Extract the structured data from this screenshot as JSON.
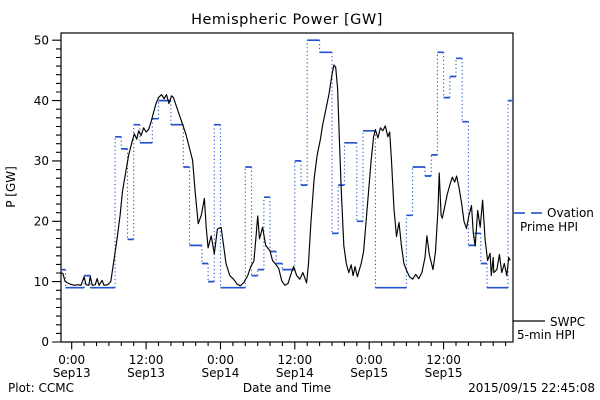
{
  "title": "Hemispheric Power [GW]",
  "footer": {
    "plot_credit": "Plot: CCMC",
    "generated_timestamp": "2015/09/15 22:45:08"
  },
  "legend": {
    "ovation_line1": "Ovation",
    "ovation_line2": "Prime HPI",
    "swpc_line1": "SWPC",
    "swpc_line2": "5-min HPI"
  },
  "colors": {
    "ovation_blue": "#2353cc",
    "swpc_black": "#000000",
    "axis": "#000000",
    "background": "#ffffff"
  },
  "chart_data": {
    "type": "line",
    "title": "Hemispheric Power [GW]",
    "xlabel": "Date and Time",
    "ylabel": "P [GW]",
    "ylim": [
      0,
      50
    ],
    "grid": false,
    "legend_position": "right-outside",
    "x_axis": {
      "unit_hours_from": "Sep13 0:00",
      "domain": [
        -1.73,
        71.2
      ],
      "major_tick_hours": [
        0,
        12,
        24,
        36,
        48,
        60
      ],
      "major_tick_labels": [
        [
          "0:00",
          "Sep13"
        ],
        [
          "12:00",
          "Sep13"
        ],
        [
          "0:00",
          "Sep14"
        ],
        [
          "12:00",
          "Sep14"
        ],
        [
          "0:00",
          "Sep15"
        ],
        [
          "12:00",
          "Sep15"
        ]
      ],
      "minor_tick_step_hours": 2
    },
    "y_axis": {
      "ticks": [
        0,
        10,
        20,
        30,
        40,
        50
      ],
      "minor_divisions_per_major": 7
    },
    "series": [
      {
        "name": "Ovation Prime HPI",
        "style": "step-dotted-verticals",
        "color": "#2353cc",
        "steps": [
          [
            -2,
            12
          ],
          [
            -1,
            9
          ],
          [
            0,
            9
          ],
          [
            1,
            9
          ],
          [
            2,
            11
          ],
          [
            3,
            9
          ],
          [
            4,
            9
          ],
          [
            5,
            9
          ],
          [
            6,
            9
          ],
          [
            7,
            34
          ],
          [
            8,
            32
          ],
          [
            9,
            17
          ],
          [
            10,
            36
          ],
          [
            11,
            33
          ],
          [
            12,
            33
          ],
          [
            13,
            37
          ],
          [
            14,
            40
          ],
          [
            15,
            40
          ],
          [
            16,
            36
          ],
          [
            17,
            36
          ],
          [
            18,
            29
          ],
          [
            19,
            16
          ],
          [
            20,
            16
          ],
          [
            21,
            13
          ],
          [
            22,
            10
          ],
          [
            23,
            36
          ],
          [
            24,
            9
          ],
          [
            25,
            9
          ],
          [
            26,
            9
          ],
          [
            27,
            9
          ],
          [
            28,
            29
          ],
          [
            29,
            11
          ],
          [
            30,
            12
          ],
          [
            31,
            24
          ],
          [
            32,
            15
          ],
          [
            33,
            13
          ],
          [
            34,
            12
          ],
          [
            35,
            12
          ],
          [
            36,
            30
          ],
          [
            37,
            26
          ],
          [
            38,
            50
          ],
          [
            39,
            50
          ],
          [
            40,
            48
          ],
          [
            41,
            48
          ],
          [
            42,
            18
          ],
          [
            43,
            26
          ],
          [
            44,
            33
          ],
          [
            45,
            33
          ],
          [
            46,
            20
          ],
          [
            47,
            35
          ],
          [
            48,
            35
          ],
          [
            49,
            9
          ],
          [
            50,
            9
          ],
          [
            51,
            9
          ],
          [
            52,
            9
          ],
          [
            53,
            9
          ],
          [
            54,
            21
          ],
          [
            55,
            29
          ],
          [
            56,
            29
          ],
          [
            57,
            27.5
          ],
          [
            58,
            31
          ],
          [
            59,
            48
          ],
          [
            60,
            40.5
          ],
          [
            61,
            44
          ],
          [
            62,
            47
          ],
          [
            63,
            36.5
          ],
          [
            64,
            16
          ],
          [
            65,
            18
          ],
          [
            66,
            13
          ],
          [
            67,
            9
          ],
          [
            68,
            9
          ],
          [
            69,
            9
          ],
          [
            70,
            9
          ],
          [
            70.4,
            40
          ]
        ]
      },
      {
        "name": "SWPC 5-min HPI",
        "style": "solid",
        "color": "#000000",
        "points": [
          [
            -1.73,
            11.5
          ],
          [
            -1.4,
            11.3
          ],
          [
            -1.1,
            10.1
          ],
          [
            -0.7,
            9.8
          ],
          [
            0,
            9.5
          ],
          [
            0.5,
            9.4
          ],
          [
            1,
            9.5
          ],
          [
            1.5,
            9.4
          ],
          [
            2,
            10.8
          ],
          [
            2.3,
            9.5
          ],
          [
            2.75,
            9.4
          ],
          [
            3,
            10.9
          ],
          [
            3.3,
            9.4
          ],
          [
            3.8,
            9.5
          ],
          [
            4.1,
            10.5
          ],
          [
            4.4,
            9.4
          ],
          [
            4.9,
            10.2
          ],
          [
            5.2,
            9.4
          ],
          [
            5.8,
            9.5
          ],
          [
            6.3,
            10
          ],
          [
            6.8,
            13.5
          ],
          [
            7.3,
            17
          ],
          [
            7.8,
            21
          ],
          [
            8.2,
            25
          ],
          [
            8.7,
            28
          ],
          [
            9.2,
            31
          ],
          [
            9.7,
            33
          ],
          [
            10.1,
            34.5
          ],
          [
            10.5,
            33.6
          ],
          [
            10.8,
            35
          ],
          [
            11.2,
            34.2
          ],
          [
            11.6,
            35.5
          ],
          [
            12,
            34.8
          ],
          [
            12.4,
            35.2
          ],
          [
            12.8,
            36.5
          ],
          [
            13.2,
            38
          ],
          [
            13.6,
            39.5
          ],
          [
            14,
            40.5
          ],
          [
            14.5,
            41
          ],
          [
            14.9,
            40.3
          ],
          [
            15.3,
            41
          ],
          [
            15.7,
            39.5
          ],
          [
            16.1,
            40.8
          ],
          [
            16.4,
            40.5
          ],
          [
            16.9,
            39
          ],
          [
            17.4,
            37.5
          ],
          [
            17.9,
            36
          ],
          [
            18.4,
            34.5
          ],
          [
            18.9,
            32.5
          ],
          [
            19.5,
            30.1
          ],
          [
            19.9,
            25
          ],
          [
            20.4,
            19.6
          ],
          [
            20.9,
            21
          ],
          [
            21.4,
            23.8
          ],
          [
            21.7,
            19
          ],
          [
            22,
            15.6
          ],
          [
            22.5,
            17.6
          ],
          [
            23,
            14.6
          ],
          [
            23.5,
            18.7
          ],
          [
            24.1,
            19
          ],
          [
            24.5,
            16
          ],
          [
            24.9,
            13
          ],
          [
            25.5,
            11
          ],
          [
            26.1,
            10.4
          ],
          [
            26.7,
            9.6
          ],
          [
            27.2,
            9.3
          ],
          [
            27.8,
            9.9
          ],
          [
            28.4,
            11
          ],
          [
            28.9,
            12.5
          ],
          [
            29.4,
            13.4
          ],
          [
            29.7,
            17
          ],
          [
            30,
            20.9
          ],
          [
            30.3,
            17.1
          ],
          [
            30.8,
            19
          ],
          [
            31.3,
            16
          ],
          [
            32,
            15.1
          ],
          [
            32.4,
            13.5
          ],
          [
            32.9,
            12.9
          ],
          [
            33.4,
            12.2
          ],
          [
            33.9,
            10.1
          ],
          [
            34.4,
            9.4
          ],
          [
            34.9,
            9.7
          ],
          [
            35.3,
            11
          ],
          [
            35.8,
            12.5
          ],
          [
            36.3,
            11
          ],
          [
            36.8,
            10.4
          ],
          [
            37.3,
            11.5
          ],
          [
            37.9,
            9.8
          ],
          [
            38.2,
            13
          ],
          [
            38.6,
            20
          ],
          [
            39.1,
            27
          ],
          [
            39.6,
            31
          ],
          [
            40.1,
            33.5
          ],
          [
            40.5,
            36
          ],
          [
            41,
            38.5
          ],
          [
            41.5,
            41
          ],
          [
            42,
            44.3
          ],
          [
            42.3,
            45.9
          ],
          [
            42.6,
            45.5
          ],
          [
            42.9,
            42
          ],
          [
            43.2,
            33
          ],
          [
            43.5,
            25
          ],
          [
            43.9,
            16
          ],
          [
            44.3,
            13
          ],
          [
            44.7,
            11.5
          ],
          [
            45.1,
            12.8
          ],
          [
            45.4,
            11
          ],
          [
            45.7,
            12.5
          ],
          [
            46.1,
            10.8
          ],
          [
            46.3,
            11.6
          ],
          [
            46.7,
            13
          ],
          [
            47.1,
            15
          ],
          [
            47.5,
            20
          ],
          [
            47.9,
            25
          ],
          [
            48.3,
            30
          ],
          [
            48.7,
            34
          ],
          [
            49,
            35.2
          ],
          [
            49.4,
            33.8
          ],
          [
            49.8,
            35.5
          ],
          [
            50.2,
            35
          ],
          [
            50.6,
            35.8
          ],
          [
            51,
            34
          ],
          [
            51.3,
            34.8
          ],
          [
            51.6,
            30
          ],
          [
            52,
            22
          ],
          [
            52.4,
            17.5
          ],
          [
            52.8,
            19.8
          ],
          [
            53.2,
            16
          ],
          [
            53.6,
            13
          ],
          [
            54.1,
            11.7
          ],
          [
            54.5,
            10.8
          ],
          [
            55,
            10.4
          ],
          [
            55.5,
            11.2
          ],
          [
            56,
            10.5
          ],
          [
            56.5,
            11.5
          ],
          [
            57,
            14
          ],
          [
            57.3,
            17.6
          ],
          [
            57.7,
            14.5
          ],
          [
            58.3,
            12
          ],
          [
            58.7,
            15
          ],
          [
            59.1,
            22
          ],
          [
            59.3,
            28
          ],
          [
            59.6,
            21
          ],
          [
            59.8,
            20.5
          ],
          [
            60.2,
            22.5
          ],
          [
            60.6,
            24.5
          ],
          [
            61,
            26
          ],
          [
            61.4,
            27.3
          ],
          [
            61.8,
            26.5
          ],
          [
            62.1,
            27.5
          ],
          [
            62.5,
            25.5
          ],
          [
            62.9,
            23
          ],
          [
            63.3,
            20
          ],
          [
            63.7,
            18.8
          ],
          [
            64.1,
            21
          ],
          [
            64.5,
            22.6
          ],
          [
            64.8,
            18
          ],
          [
            65.1,
            15.9
          ],
          [
            65.5,
            21.8
          ],
          [
            65.9,
            19
          ],
          [
            66.3,
            23.5
          ],
          [
            66.7,
            17
          ],
          [
            67.1,
            13.5
          ],
          [
            67.5,
            14.7
          ],
          [
            67.7,
            11
          ],
          [
            68,
            14
          ],
          [
            68.1,
            11.5
          ],
          [
            68.6,
            12
          ],
          [
            69,
            14.5
          ],
          [
            69.4,
            11.5
          ],
          [
            69.8,
            13
          ],
          [
            70.2,
            11
          ],
          [
            70.5,
            14
          ],
          [
            70.75,
            13.5
          ]
        ]
      }
    ]
  }
}
